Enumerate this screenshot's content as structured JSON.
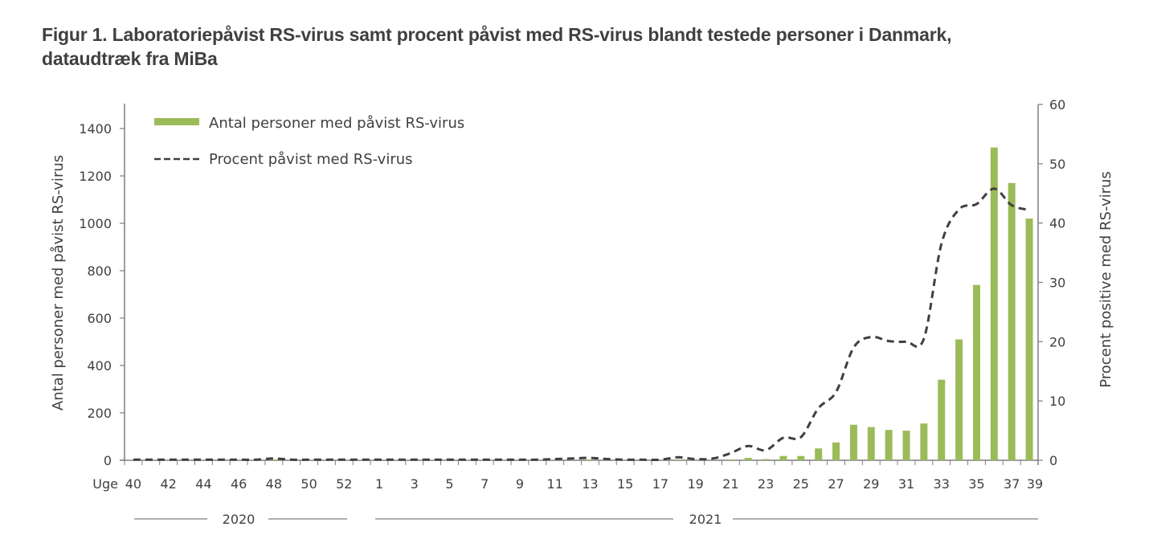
{
  "figure": {
    "title_line1": "Figur 1. Laboratoriepåvist RS-virus samt procent påvist med RS-virus blandt testede personer i Danmark,",
    "title_line2": "dataudtræk fra MiBa"
  },
  "colors": {
    "bar": "#9bbb59",
    "line": "#404040",
    "axis": "#7f7f7f",
    "text": "#404040"
  },
  "chart_data": {
    "type": "bar",
    "title": "Figur 1. Laboratoriepåvist RS-virus samt procent påvist med RS-virus blandt testede personer i Danmark, dataudtræk fra MiBa",
    "xlabel": "Uge",
    "ylabel": "Antal personer med påvist RS-virus",
    "y2label": "Procent positive med RS-virus",
    "ylim": [
      0,
      1500
    ],
    "y2lim": [
      0,
      60
    ],
    "yticks": [
      0,
      200,
      400,
      600,
      800,
      1000,
      1200,
      1400
    ],
    "y2ticks": [
      0,
      10,
      20,
      30,
      40,
      50,
      60
    ],
    "grid": false,
    "legend_position": "top-left",
    "x_tick_labels": [
      "40",
      "42",
      "44",
      "46",
      "48",
      "50",
      "52",
      "1",
      "3",
      "5",
      "7",
      "9",
      "11",
      "13",
      "15",
      "17",
      "19",
      "21",
      "23",
      "25",
      "27",
      "29",
      "31",
      "33",
      "35",
      "37",
      "39"
    ],
    "year_groups": [
      {
        "label": "2020",
        "from": "40",
        "to": "53"
      },
      {
        "label": "2021",
        "from": "1",
        "to": "39"
      }
    ],
    "categories": [
      "40",
      "41",
      "42",
      "43",
      "44",
      "45",
      "46",
      "47",
      "48",
      "49",
      "50",
      "51",
      "52",
      "53",
      "1",
      "2",
      "3",
      "4",
      "5",
      "6",
      "7",
      "8",
      "9",
      "10",
      "11",
      "12",
      "13",
      "14",
      "15",
      "16",
      "17",
      "18",
      "19",
      "20",
      "21",
      "22",
      "23",
      "24",
      "25",
      "26",
      "27",
      "28",
      "29",
      "30",
      "31",
      "32",
      "33",
      "34",
      "35",
      "36",
      "37",
      "38"
    ],
    "series": [
      {
        "name": "Antal personer med påvist RS-virus",
        "type": "bar",
        "axis": "left",
        "values": [
          1,
          1,
          1,
          1,
          1,
          1,
          1,
          1,
          3,
          1,
          1,
          1,
          1,
          1,
          1,
          1,
          1,
          1,
          1,
          1,
          1,
          1,
          1,
          1,
          1,
          1,
          2,
          1,
          1,
          1,
          1,
          3,
          1,
          1,
          3,
          10,
          5,
          18,
          18,
          50,
          75,
          150,
          140,
          128,
          125,
          155,
          340,
          510,
          740,
          1320,
          1170,
          1020
        ]
      },
      {
        "name": "Procent påvist med RS-virus",
        "type": "line",
        "style": "dashed",
        "axis": "right",
        "values": [
          0.1,
          0.1,
          0.1,
          0.1,
          0.1,
          0.1,
          0.1,
          0.1,
          0.3,
          0.1,
          0.1,
          0.1,
          0.1,
          0.1,
          0.1,
          0.1,
          0.1,
          0.1,
          0.1,
          0.1,
          0.1,
          0.1,
          0.1,
          0.1,
          0.2,
          0.3,
          0.4,
          0.2,
          0.1,
          0.1,
          0.1,
          0.5,
          0.2,
          0.3,
          1.2,
          2.4,
          1.7,
          3.8,
          3.9,
          8.8,
          11.5,
          19.0,
          20.8,
          20.1,
          20.0,
          20.5,
          36.5,
          42.3,
          43.2,
          45.8,
          43.0,
          42.2
        ]
      }
    ]
  },
  "legend": {
    "items": [
      {
        "label": "Antal personer med påvist RS-virus",
        "symbol": "bar"
      },
      {
        "label": "Procent påvist med RS-virus",
        "symbol": "dashed-line"
      }
    ]
  }
}
